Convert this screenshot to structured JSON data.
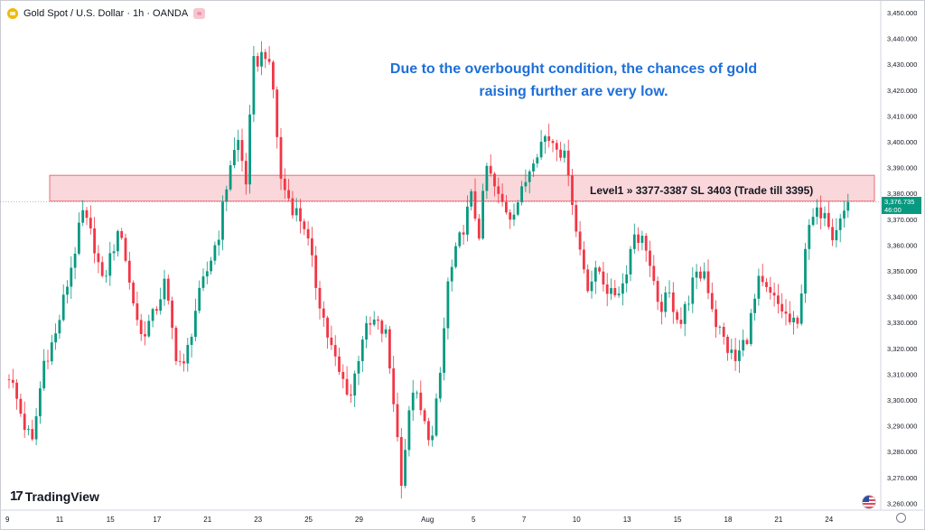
{
  "header": {
    "symbol": "Gold Spot / U.S. Dollar · 1h · OANDA",
    "icon": "gold-coin-icon",
    "badge": "≈"
  },
  "annotation": {
    "line1": "Due to the overbought condition, the chances of gold",
    "line2": "raising further are very low."
  },
  "level": {
    "label": "Level1 » 3377-3387 SL 3403 (Trade till 3395)",
    "zone_low": 3377,
    "zone_high": 3387,
    "zone_color": "#f8c9cd",
    "zone_border": "#e86f76"
  },
  "price_tag": {
    "price": "3,376.735",
    "countdown": "46:00",
    "color": "#089981"
  },
  "branding": {
    "logo_mark": "17",
    "logo_text": "TradingView"
  },
  "icons": {
    "flag": "us-flag-icon",
    "settings": "gear-icon"
  },
  "chart_data": {
    "type": "candlestick",
    "ylim": [
      3255,
      3452
    ],
    "y_ticks": [
      "3,450.000",
      "3,440.000",
      "3,430.000",
      "3,420.000",
      "3,410.000",
      "3,400.000",
      "3,390.000",
      "3,380.000",
      "3,370.000",
      "3,360.000",
      "3,350.000",
      "3,340.000",
      "3,330.000",
      "3,320.000",
      "3,310.000",
      "3,300.000",
      "3,290.000",
      "3,280.000",
      "3,270.000",
      "3,260.000"
    ],
    "y_tick_values": [
      3450,
      3440,
      3430,
      3420,
      3410,
      3400,
      3390,
      3380,
      3370,
      3360,
      3350,
      3340,
      3330,
      3320,
      3310,
      3300,
      3290,
      3280,
      3270,
      3260
    ],
    "x_ticks": [
      "9",
      "11",
      "15",
      "17",
      "21",
      "23",
      "25",
      "29",
      "Aug",
      "5",
      "7",
      "10",
      "13",
      "15",
      "18",
      "21",
      "24"
    ],
    "x_tick_index": [
      0,
      13,
      26,
      38,
      51,
      64,
      77,
      90,
      107,
      120,
      133,
      146,
      159,
      172,
      185,
      198,
      211
    ],
    "bull_color": "#089981",
    "bear_color": "#f23645",
    "close_price": 3376.7,
    "anchors": [
      [
        0,
        3310
      ],
      [
        4,
        3290
      ],
      [
        6,
        3283
      ],
      [
        9,
        3315
      ],
      [
        12,
        3325
      ],
      [
        15,
        3345
      ],
      [
        19,
        3372
      ],
      [
        22,
        3360
      ],
      [
        24,
        3345
      ],
      [
        27,
        3360
      ],
      [
        29,
        3365
      ],
      [
        31,
        3345
      ],
      [
        34,
        3325
      ],
      [
        37,
        3332
      ],
      [
        40,
        3345
      ],
      [
        43,
        3318
      ],
      [
        45,
        3312
      ],
      [
        48,
        3335
      ],
      [
        51,
        3350
      ],
      [
        54,
        3365
      ],
      [
        57,
        3392
      ],
      [
        59,
        3400
      ],
      [
        61,
        3385
      ],
      [
        63,
        3430
      ],
      [
        66,
        3435
      ],
      [
        68,
        3420
      ],
      [
        70,
        3385
      ],
      [
        73,
        3375
      ],
      [
        76,
        3368
      ],
      [
        79,
        3345
      ],
      [
        82,
        3325
      ],
      [
        85,
        3310
      ],
      [
        88,
        3302
      ],
      [
        91,
        3325
      ],
      [
        94,
        3330
      ],
      [
        97,
        3325
      ],
      [
        99,
        3300
      ],
      [
        101,
        3270
      ],
      [
        104,
        3305
      ],
      [
        107,
        3290
      ],
      [
        109,
        3285
      ],
      [
        111,
        3310
      ],
      [
        113,
        3345
      ],
      [
        116,
        3362
      ],
      [
        119,
        3378
      ],
      [
        121,
        3365
      ],
      [
        123,
        3390
      ],
      [
        126,
        3378
      ],
      [
        129,
        3372
      ],
      [
        132,
        3380
      ],
      [
        135,
        3395
      ],
      [
        138,
        3402
      ],
      [
        141,
        3400
      ],
      [
        144,
        3390
      ],
      [
        146,
        3365
      ],
      [
        149,
        3345
      ],
      [
        152,
        3350
      ],
      [
        155,
        3340
      ],
      [
        158,
        3345
      ],
      [
        161,
        3365
      ],
      [
        164,
        3360
      ],
      [
        167,
        3335
      ],
      [
        170,
        3340
      ],
      [
        173,
        3330
      ],
      [
        176,
        3345
      ],
      [
        179,
        3350
      ],
      [
        182,
        3330
      ],
      [
        185,
        3320
      ],
      [
        187,
        3315
      ],
      [
        190,
        3325
      ],
      [
        193,
        3345
      ],
      [
        196,
        3340
      ],
      [
        199,
        3335
      ],
      [
        201,
        3330
      ],
      [
        203,
        3328
      ],
      [
        205,
        3360
      ],
      [
        207,
        3370
      ],
      [
        210,
        3375
      ],
      [
        212,
        3365
      ],
      [
        214,
        3370
      ],
      [
        216,
        3376
      ]
    ]
  }
}
